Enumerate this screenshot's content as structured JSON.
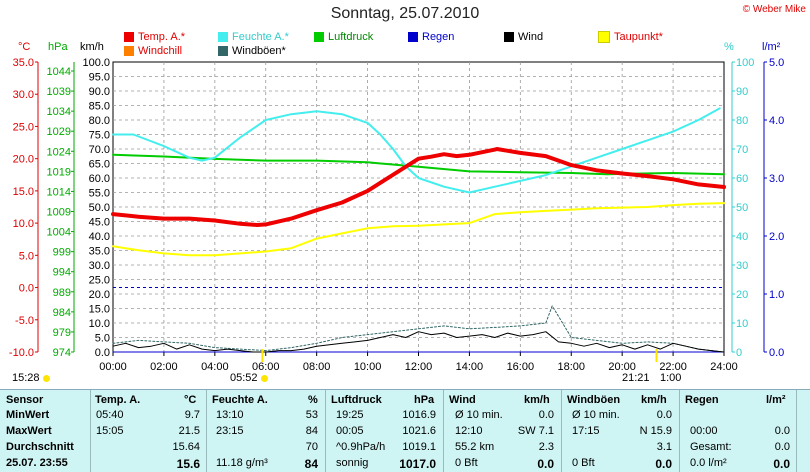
{
  "title": "Sonntag, 25.07.2010",
  "copyright": "© Weber Mike",
  "colors": {
    "temp": "#ee0000",
    "humidity": "#44eeee",
    "pressure": "#00cc00",
    "rain": "#0000cc",
    "wind": "#000000",
    "dewpoint": "#ffff00",
    "windchill": "#ff8000",
    "gusts": "#336666"
  },
  "legend": [
    {
      "label": "Temp. A.*",
      "color": "#ee0000"
    },
    {
      "label": "Feuchte A.*",
      "color": "#44eeee"
    },
    {
      "label": "Luftdruck",
      "color": "#00cc00"
    },
    {
      "label": "Regen",
      "color": "#0000cc"
    },
    {
      "label": "Wind",
      "color": "#000000"
    },
    {
      "label": "Taupunkt*",
      "color": "#ffff00"
    },
    {
      "label": "Windchill",
      "color": "#ff8000"
    },
    {
      "label": "Windböen*",
      "color": "#336666"
    }
  ],
  "axis_units": {
    "temp": "°C",
    "pressure": "hPa",
    "wind": "km/h",
    "humidity": "%",
    "rain": "l/m²"
  },
  "markers": {
    "sunrise": "05:52",
    "sunset": "21:21",
    "left_time": "15:28",
    "moon_time": "1:00"
  },
  "chart_data": {
    "type": "line",
    "x_ticks": [
      "00:00",
      "02:00",
      "04:00",
      "06:00",
      "08:00",
      "10:00",
      "12:00",
      "14:00",
      "16:00",
      "18:00",
      "20:00",
      "22:00",
      "24:00"
    ],
    "axes": {
      "temp_ticks": [
        "35.0",
        "30.0",
        "25.0",
        "20.0",
        "15.0",
        "10.0",
        "5.0",
        "0.0",
        "-5.0",
        "-10.0"
      ],
      "pressure_ticks": [
        "1044",
        "1039",
        "1034",
        "1029",
        "1024",
        "1019",
        "1014",
        "1009",
        "1004",
        "999",
        "994",
        "989",
        "984",
        "979",
        "974"
      ],
      "wind_ticks": [
        "100.0",
        "95.0",
        "90.0",
        "85.0",
        "80.0",
        "75.0",
        "70.0",
        "65.0",
        "60.0",
        "55.0",
        "50.0",
        "45.0",
        "40.0",
        "35.0",
        "30.0",
        "25.0",
        "20.0",
        "15.0",
        "10.0",
        "5.0",
        "0.0"
      ],
      "humidity_ticks": [
        "100",
        "90",
        "80",
        "70",
        "60",
        "50",
        "40",
        "30",
        "20",
        "10",
        "0"
      ],
      "rain_ticks": [
        "5.0",
        "4.0",
        "3.0",
        "2.0",
        "1.0",
        "0.0"
      ]
    },
    "xlim": [
      0,
      24
    ],
    "ylim_temp": [
      -10,
      35
    ],
    "ylim_wind": [
      0,
      100
    ],
    "ylim_humidity": [
      0,
      100
    ],
    "ylim_rain": [
      0,
      5
    ],
    "series": [
      {
        "name": "Temp. A.*",
        "axis": "temp",
        "color": "#ee0000",
        "width": 4,
        "x": [
          0,
          1,
          2,
          3,
          4,
          5,
          5.67,
          6,
          7,
          8,
          9,
          10,
          11,
          12,
          12.5,
          13,
          13.5,
          14,
          15,
          15.08,
          16,
          17,
          18,
          19,
          20,
          21,
          22,
          23,
          24
        ],
        "y": [
          11.4,
          11,
          10.7,
          10.7,
          10.4,
          9.9,
          9.7,
          9.8,
          10.7,
          12,
          13.2,
          15,
          17.5,
          20,
          20.3,
          20.7,
          20.4,
          20.6,
          21.4,
          21.5,
          20.9,
          20.4,
          19,
          18.2,
          17.7,
          17.3,
          16.8,
          16,
          15.6
        ]
      },
      {
        "name": "Feuchte A.*",
        "axis": "humidity",
        "color": "#44eeee",
        "width": 2,
        "x": [
          0,
          0.8,
          2,
          3,
          3.5,
          4,
          5,
          6,
          7,
          8,
          9,
          10,
          10.5,
          11,
          11.5,
          12,
          13,
          14,
          15,
          16,
          17,
          18,
          19,
          20,
          21,
          22,
          23,
          23.83
        ],
        "y": [
          75,
          75,
          71,
          67,
          66,
          67,
          74,
          80,
          82,
          83,
          82,
          79,
          75,
          70,
          64,
          60,
          57,
          55,
          57,
          59,
          61,
          64,
          67,
          70,
          73,
          76,
          80,
          84
        ]
      },
      {
        "name": "Luftdruck",
        "axis": "pressure",
        "color": "#00cc00",
        "width": 2,
        "x": [
          0,
          2,
          4,
          6,
          8,
          10,
          12,
          14,
          16,
          18,
          19.42,
          20,
          22,
          24
        ],
        "y": [
          1021.6,
          1021.2,
          1020.6,
          1020.2,
          1020.2,
          1019.8,
          1018.7,
          1017.6,
          1017.4,
          1017.2,
          1016.9,
          1017.0,
          1017.2,
          1016.9
        ]
      },
      {
        "name": "Taupunkt*",
        "axis": "temp",
        "color": "#ffff00",
        "width": 2,
        "x": [
          0,
          1,
          2,
          3,
          4,
          5,
          6,
          7,
          8,
          9,
          10,
          11,
          12,
          13,
          14,
          15,
          16,
          17,
          18,
          19,
          20,
          21,
          22,
          23,
          24
        ],
        "y": [
          6.4,
          5.8,
          5.3,
          5.0,
          5.0,
          5.3,
          5.6,
          6.1,
          7.6,
          8.4,
          9.2,
          9.5,
          9.6,
          9.8,
          10.0,
          11.4,
          11.7,
          11.9,
          12.1,
          12.3,
          12.4,
          12.5,
          12.8,
          13.0,
          13.1
        ]
      },
      {
        "name": "Wind",
        "axis": "wind",
        "color": "#000000",
        "width": 1,
        "x": [
          0,
          0.5,
          1,
          1.5,
          2,
          2.5,
          3,
          3.5,
          4,
          4.5,
          5,
          5.5,
          6,
          6.5,
          7,
          7.5,
          8,
          8.5,
          9,
          9.5,
          10,
          10.5,
          11,
          11.5,
          12,
          12.5,
          13,
          13.5,
          14,
          14.5,
          15,
          15.5,
          16,
          16.5,
          17,
          17.5,
          18,
          18.5,
          19,
          19.5,
          20,
          20.5,
          21,
          21.5,
          22,
          22.5,
          23,
          23.5,
          24
        ],
        "y": [
          2,
          3,
          1.5,
          2,
          3,
          1,
          2.5,
          1,
          0.5,
          1,
          0.5,
          0,
          0,
          0.5,
          0.5,
          1,
          2,
          2.5,
          3,
          3.5,
          4,
          5,
          6,
          5,
          7,
          6,
          6.5,
          5,
          5.5,
          6,
          5,
          6.5,
          5.5,
          6,
          7,
          3.5,
          3,
          2,
          3,
          1.5,
          2.5,
          1,
          2.5,
          1,
          3,
          2,
          1,
          0.5,
          0
        ]
      },
      {
        "name": "Windböen*",
        "axis": "wind",
        "color": "#336666",
        "width": 1,
        "dash": true,
        "x": [
          0,
          1,
          2,
          3,
          4,
          5,
          6,
          7,
          8,
          9,
          10,
          11,
          12,
          13,
          14,
          15,
          16,
          17,
          17.25,
          18,
          19,
          20,
          21,
          22,
          23,
          24
        ],
        "y": [
          3,
          4,
          3.5,
          3,
          1.5,
          1,
          0.5,
          1.5,
          3,
          5,
          6,
          7,
          8,
          9,
          8,
          8.5,
          9,
          10,
          15.9,
          5,
          4,
          3,
          3.5,
          3,
          1,
          0
        ]
      },
      {
        "name": "Regen",
        "axis": "rain",
        "color": "#0000cc",
        "width": 1,
        "x": [
          0,
          24
        ],
        "y": [
          0,
          0
        ]
      }
    ]
  },
  "table": {
    "headers": {
      "sensor": "Sensor",
      "temp": "Temp. A.",
      "temp_unit": "°C",
      "hum": "Feuchte A.",
      "hum_unit": "%",
      "press": "Luftdruck",
      "press_unit": "hPa",
      "wind": "Wind",
      "wind_unit": "km/h",
      "gust": "Windböen",
      "gust_unit": "km/h",
      "rain": "Regen",
      "rain_unit": "l/m²"
    },
    "rows": {
      "labels": [
        "MinWert",
        "MaxWert",
        "Durchschnitt",
        "25.07. 23:55"
      ],
      "temp_time": [
        "05:40",
        "15:05",
        "",
        ""
      ],
      "temp_val": [
        "9.7",
        "21.5",
        "15.64",
        "15.6"
      ],
      "hum_time": [
        "13:10",
        "23:15",
        "",
        "11.18 g/m³"
      ],
      "hum_val": [
        "53",
        "84",
        "70",
        "84"
      ],
      "press_time": [
        "19:25",
        "00:05",
        "^0.9hPa/h",
        "sonnig"
      ],
      "press_val": [
        "1016.9",
        "1021.6",
        "1019.1",
        "1017.0"
      ],
      "wind_time": [
        "Ø 10 min.",
        "12:10",
        "55.2 km",
        "0 Bft"
      ],
      "wind_val": [
        "0.0",
        "SW 7.1",
        "2.3",
        "0.0"
      ],
      "gust_time": [
        "Ø 10 min.",
        "17:15",
        "",
        "0 Bft"
      ],
      "gust_val": [
        "0.0",
        "N 15.9",
        "3.1",
        "0.0"
      ],
      "rain_time": [
        "",
        "00:00",
        "Gesamt:",
        "0.0 l/m²"
      ],
      "rain_val": [
        "",
        "0.0",
        "0.0",
        "0.0"
      ]
    }
  }
}
